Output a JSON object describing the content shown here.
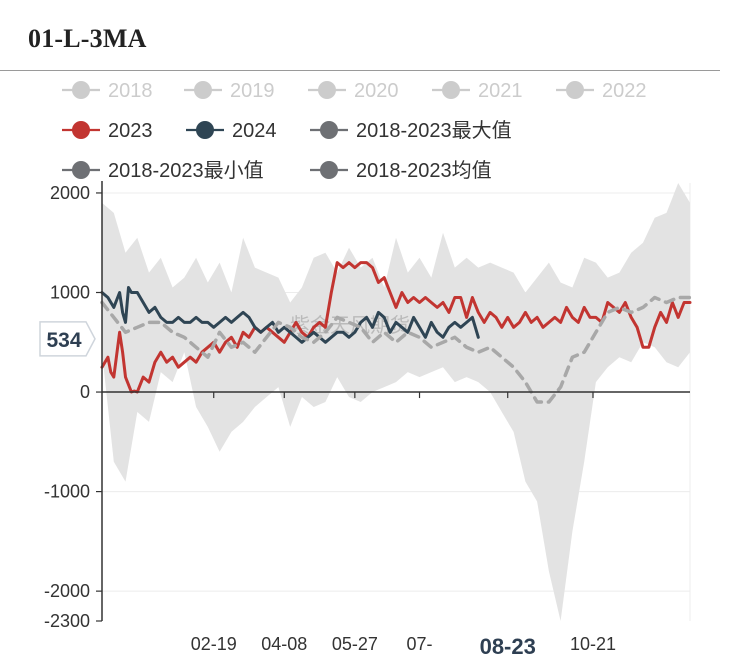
{
  "title": "01-L-3MA",
  "watermark": "紫金天风期货",
  "chart_data": {
    "type": "line",
    "title": "01-L-3MA",
    "ylim": [
      -2300,
      2100
    ],
    "y_ticks": [
      2000,
      1000,
      0,
      -1000,
      -2000,
      -2300
    ],
    "y_tick_labels": [
      "2000",
      "1000",
      "0",
      "-1000",
      "-2000",
      "-2300"
    ],
    "x_tick_labels": [
      "02-19",
      "04-08",
      "05-27",
      "07-",
      "08-23",
      "10-21"
    ],
    "x_tick_positions": [
      38,
      62,
      86,
      108,
      138,
      167
    ],
    "x_highlight_label": "08-23",
    "x_max": 200,
    "pointer_value": "534",
    "grid": true,
    "legend_position": "top",
    "legend": [
      {
        "name": "2018",
        "color": "#cccccc",
        "active": false
      },
      {
        "name": "2019",
        "color": "#cccccc",
        "active": false
      },
      {
        "name": "2020",
        "color": "#cccccc",
        "active": false
      },
      {
        "name": "2021",
        "color": "#cccccc",
        "active": false
      },
      {
        "name": "2022",
        "color": "#cccccc",
        "active": false
      },
      {
        "name": "2023",
        "color": "#c23531",
        "active": true
      },
      {
        "name": "2024",
        "color": "#2f4554",
        "active": true
      },
      {
        "name": "2018-2023最大值",
        "color": "#6e7074",
        "active": true
      },
      {
        "name": "2018-2023最小值",
        "color": "#6e7074",
        "active": true
      },
      {
        "name": "2018-2023均值",
        "color": "#6e7074",
        "active": true
      }
    ],
    "band": {
      "color": "#e3e3e3",
      "x": [
        0,
        4,
        8,
        12,
        16,
        20,
        24,
        28,
        32,
        36,
        40,
        44,
        48,
        52,
        56,
        60,
        64,
        68,
        72,
        76,
        80,
        84,
        88,
        92,
        96,
        100,
        104,
        108,
        112,
        116,
        120,
        124,
        128,
        132,
        136,
        140,
        144,
        148,
        152,
        156,
        160,
        164,
        168,
        172,
        176,
        180,
        184,
        188,
        192,
        196,
        200
      ],
      "max": [
        1900,
        1800,
        1400,
        1550,
        1200,
        1350,
        1050,
        1150,
        1350,
        1100,
        1300,
        1000,
        1550,
        1250,
        1200,
        1150,
        900,
        1050,
        1350,
        1400,
        1200,
        1450,
        1250,
        1350,
        1050,
        1550,
        1200,
        1350,
        1150,
        1600,
        1250,
        1350,
        1250,
        1300,
        1250,
        1200,
        1000,
        1150,
        1300,
        1100,
        1050,
        1350,
        1300,
        1150,
        1200,
        1400,
        1500,
        1750,
        1800,
        2100,
        1900
      ],
      "min": [
        400,
        -700,
        -900,
        -200,
        -300,
        200,
        100,
        400,
        -150,
        -350,
        -600,
        -400,
        -300,
        -150,
        -50,
        50,
        -350,
        -50,
        -150,
        -100,
        150,
        -50,
        -100,
        0,
        50,
        100,
        200,
        150,
        200,
        250,
        100,
        150,
        100,
        0,
        -200,
        -400,
        -900,
        -1100,
        -1800,
        -2300,
        -1400,
        -700,
        100,
        250,
        350,
        300,
        500,
        450,
        300,
        250,
        400
      ]
    },
    "series": [
      {
        "name": "2023",
        "color": "#c23531",
        "dash": false,
        "x": [
          0,
          2,
          3,
          4,
          6,
          7,
          8,
          10,
          11,
          12,
          14,
          16,
          18,
          20,
          22,
          24,
          26,
          28,
          30,
          32,
          34,
          36,
          38,
          40,
          42,
          44,
          46,
          48,
          50,
          52,
          54,
          56,
          58,
          60,
          62,
          64,
          66,
          68,
          70,
          72,
          74,
          76,
          78,
          80,
          82,
          84,
          86,
          88,
          90,
          92,
          94,
          96,
          98,
          100,
          102,
          104,
          106,
          108,
          110,
          112,
          114,
          116,
          118,
          120,
          122,
          124,
          126,
          128,
          130,
          132,
          134,
          136,
          138,
          140,
          142,
          144,
          146,
          148,
          150,
          152,
          154,
          156,
          158,
          160,
          162,
          164,
          166,
          168,
          170,
          172,
          174,
          176,
          178,
          180,
          182,
          184,
          186,
          188,
          190,
          192,
          194,
          196,
          198,
          200
        ],
        "y": [
          250,
          350,
          200,
          150,
          600,
          400,
          150,
          0,
          10,
          0,
          150,
          100,
          300,
          400,
          300,
          350,
          250,
          300,
          350,
          300,
          400,
          450,
          500,
          400,
          500,
          550,
          450,
          600,
          550,
          650,
          600,
          650,
          600,
          550,
          500,
          600,
          700,
          600,
          550,
          650,
          700,
          650,
          1000,
          1300,
          1250,
          1300,
          1250,
          1300,
          1300,
          1250,
          1100,
          1150,
          1000,
          850,
          1000,
          900,
          950,
          900,
          950,
          900,
          850,
          900,
          800,
          950,
          950,
          750,
          950,
          800,
          700,
          800,
          750,
          650,
          750,
          650,
          700,
          800,
          700,
          750,
          650,
          700,
          750,
          700,
          850,
          750,
          700,
          850,
          750,
          750,
          700,
          900,
          850,
          800,
          900,
          750,
          650,
          450,
          450,
          650,
          800,
          700,
          900,
          750,
          900,
          900
        ]
      },
      {
        "name": "2024",
        "color": "#2f4554",
        "dash": false,
        "x": [
          0,
          2,
          4,
          6,
          7,
          8,
          9,
          10,
          12,
          14,
          16,
          18,
          20,
          22,
          24,
          26,
          28,
          30,
          32,
          34,
          36,
          38,
          40,
          42,
          44,
          46,
          48,
          50,
          52,
          54,
          56,
          58,
          60,
          62,
          64,
          66,
          68,
          70,
          72,
          74,
          76,
          78,
          80,
          82,
          84,
          86,
          88,
          90,
          92,
          94,
          96,
          98,
          100,
          102,
          104,
          106,
          108,
          110,
          112,
          114,
          116,
          118,
          120,
          122,
          124,
          126,
          128
        ],
        "y": [
          1000,
          950,
          850,
          1000,
          800,
          700,
          1050,
          1000,
          1000,
          900,
          800,
          850,
          750,
          700,
          700,
          750,
          700,
          700,
          750,
          700,
          700,
          650,
          700,
          750,
          700,
          750,
          800,
          750,
          650,
          600,
          650,
          700,
          600,
          650,
          600,
          550,
          500,
          550,
          600,
          550,
          500,
          550,
          600,
          600,
          550,
          600,
          700,
          750,
          650,
          800,
          750,
          600,
          700,
          650,
          600,
          750,
          650,
          550,
          700,
          600,
          550,
          650,
          700,
          650,
          700,
          750,
          550
        ]
      },
      {
        "name": "2018-2023均值",
        "color": "#a8a8a8",
        "dash": true,
        "x": [
          0,
          4,
          8,
          12,
          16,
          20,
          24,
          28,
          32,
          36,
          40,
          44,
          48,
          52,
          56,
          60,
          64,
          68,
          72,
          76,
          80,
          84,
          88,
          92,
          96,
          100,
          104,
          108,
          112,
          116,
          120,
          124,
          128,
          132,
          136,
          140,
          144,
          148,
          152,
          156,
          160,
          164,
          168,
          172,
          176,
          180,
          184,
          188,
          192,
          196,
          200
        ],
        "y": [
          900,
          750,
          600,
          650,
          700,
          700,
          600,
          550,
          450,
          350,
          600,
          450,
          500,
          400,
          550,
          700,
          650,
          550,
          500,
          600,
          750,
          700,
          650,
          500,
          600,
          500,
          600,
          550,
          450,
          500,
          550,
          450,
          400,
          450,
          350,
          250,
          100,
          -100,
          -100,
          50,
          350,
          400,
          600,
          800,
          850,
          800,
          850,
          950,
          900,
          950,
          950
        ]
      }
    ]
  }
}
